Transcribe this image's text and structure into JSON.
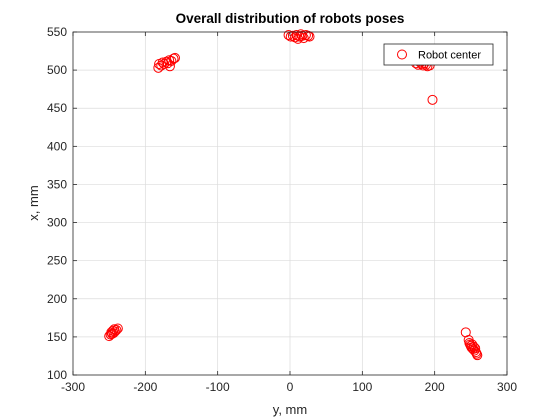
{
  "chart_data": {
    "type": "scatter",
    "title": "Overall distribution of robots poses",
    "xlabel": "y, mm",
    "ylabel": "x, mm",
    "xlim": [
      -300,
      300
    ],
    "ylim": [
      100,
      550
    ],
    "xticks": [
      -300,
      -200,
      -100,
      0,
      100,
      200,
      300
    ],
    "yticks": [
      100,
      150,
      200,
      250,
      300,
      350,
      400,
      450,
      500,
      550
    ],
    "grid": true,
    "legend": {
      "entries": [
        "Robot center"
      ],
      "placement": "top-right"
    },
    "series": [
      {
        "name": "Robot center",
        "color": "#ff0000",
        "marker": "circle-open",
        "points": [
          [
            -182,
            503
          ],
          [
            -181,
            508
          ],
          [
            -178,
            506
          ],
          [
            -176,
            510
          ],
          [
            -174,
            508
          ],
          [
            -171,
            511
          ],
          [
            -169,
            509
          ],
          [
            -167,
            513
          ],
          [
            -166,
            505
          ],
          [
            -164,
            512
          ],
          [
            -161,
            515
          ],
          [
            -159,
            516
          ],
          [
            -2,
            546
          ],
          [
            1,
            544
          ],
          [
            4,
            545
          ],
          [
            7,
            543
          ],
          [
            9,
            546
          ],
          [
            11,
            541
          ],
          [
            13,
            544
          ],
          [
            15,
            547
          ],
          [
            17,
            545
          ],
          [
            19,
            542
          ],
          [
            22,
            546
          ],
          [
            25,
            545
          ],
          [
            27,
            544
          ],
          [
            174,
            509
          ],
          [
            177,
            507
          ],
          [
            180,
            510
          ],
          [
            182,
            508
          ],
          [
            184,
            506
          ],
          [
            186,
            509
          ],
          [
            188,
            507
          ],
          [
            190,
            505
          ],
          [
            193,
            506
          ],
          [
            197,
            461
          ],
          [
            -250,
            151
          ],
          [
            -248,
            153
          ],
          [
            -247,
            156
          ],
          [
            -246,
            154
          ],
          [
            -245,
            158
          ],
          [
            -244,
            155
          ],
          [
            -243,
            160
          ],
          [
            -242,
            157
          ],
          [
            -240,
            159
          ],
          [
            -238,
            161
          ],
          [
            243,
            156
          ],
          [
            247,
            146
          ],
          [
            248,
            142
          ],
          [
            249,
            140
          ],
          [
            250,
            138
          ],
          [
            251,
            136
          ],
          [
            252,
            140
          ],
          [
            253,
            134
          ],
          [
            254,
            137
          ],
          [
            255,
            132
          ],
          [
            256,
            135
          ],
          [
            257,
            130
          ],
          [
            258,
            128
          ],
          [
            259,
            126
          ]
        ]
      }
    ]
  }
}
